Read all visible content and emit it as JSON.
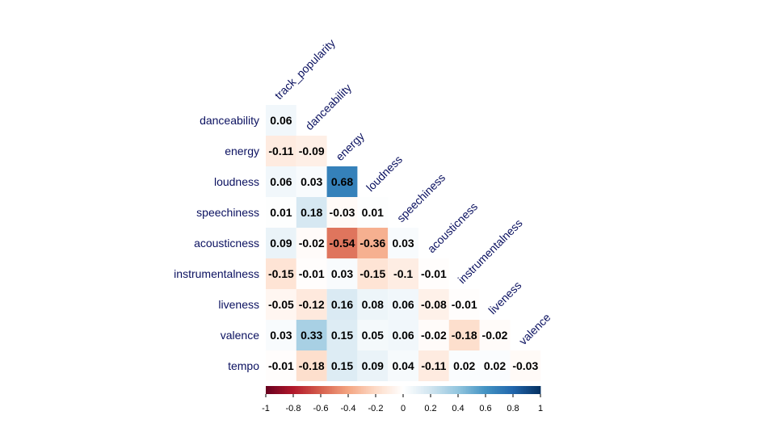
{
  "chart_data": {
    "type": "heatmap",
    "layout": "lower-triangle-correlation-matrix",
    "columns": [
      "track_popularity",
      "danceability",
      "energy",
      "loudness",
      "speechiness",
      "acousticness",
      "instrumentalness",
      "liveness",
      "valence"
    ],
    "rows": [
      {
        "name": "danceability",
        "values": [
          0.06
        ]
      },
      {
        "name": "energy",
        "values": [
          -0.11,
          -0.09
        ]
      },
      {
        "name": "loudness",
        "values": [
          0.06,
          0.03,
          0.68
        ]
      },
      {
        "name": "speechiness",
        "values": [
          0.01,
          0.18,
          -0.03,
          0.01
        ]
      },
      {
        "name": "acousticness",
        "values": [
          0.09,
          -0.02,
          -0.54,
          -0.36,
          0.03
        ]
      },
      {
        "name": "instrumentalness",
        "values": [
          -0.15,
          -0.01,
          0.03,
          -0.15,
          -0.1,
          -0.01
        ]
      },
      {
        "name": "liveness",
        "values": [
          -0.05,
          -0.12,
          0.16,
          0.08,
          0.06,
          -0.08,
          -0.01
        ]
      },
      {
        "name": "valence",
        "values": [
          0.03,
          0.33,
          0.15,
          0.05,
          0.06,
          -0.02,
          -0.18,
          -0.02
        ]
      },
      {
        "name": "tempo",
        "values": [
          -0.01,
          -0.18,
          0.15,
          0.09,
          0.04,
          -0.11,
          0.02,
          0.02,
          -0.03
        ]
      }
    ],
    "colorbar": {
      "range": [
        -1,
        1
      ],
      "ticks": [
        "-1",
        "-0.8",
        "-0.6",
        "-0.4",
        "-0.2",
        "0",
        "0.2",
        "0.4",
        "0.6",
        "0.8",
        "1"
      ]
    },
    "colors": {
      "negative_end": "#67001f",
      "neutral": "#ffffff",
      "positive_end": "#053061",
      "labels": "#0b1160"
    }
  }
}
